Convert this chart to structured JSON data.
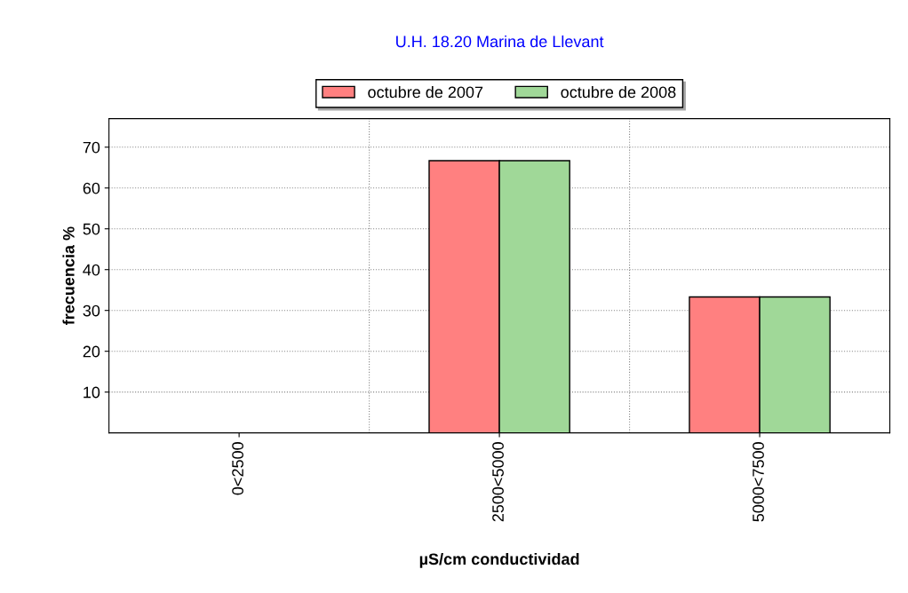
{
  "chart_data": {
    "type": "bar",
    "title": "U.H. 18.20 Marina de Llevant",
    "xlabel": "µS/cm conductividad",
    "ylabel": "frecuencia %",
    "categories": [
      "0<2500",
      "2500<5000",
      "5000<7500"
    ],
    "series": [
      {
        "name": "octubre de 2007",
        "color": "#ff8080",
        "values": [
          0,
          66.7,
          33.3
        ]
      },
      {
        "name": "octubre de 2008",
        "color": "#a0d898",
        "values": [
          0,
          66.7,
          33.3
        ]
      }
    ],
    "ylim": [
      0,
      77
    ],
    "yticks": [
      10,
      20,
      30,
      40,
      50,
      60,
      70
    ],
    "grid": true,
    "legend": "top"
  }
}
